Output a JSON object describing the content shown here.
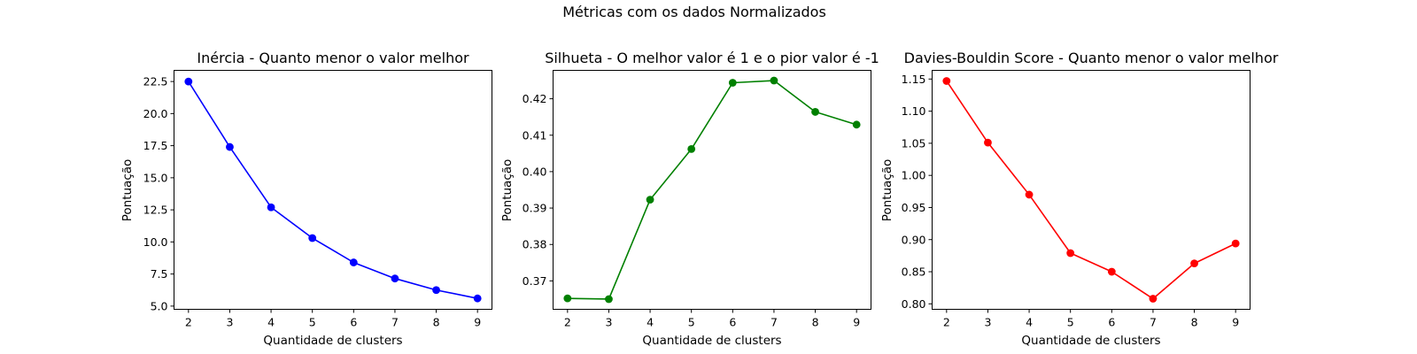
{
  "figure": {
    "suptitle": "Métricas com os dados Normalizados"
  },
  "chart_data": [
    {
      "type": "line",
      "title": "Inércia - Quanto menor o valor melhor",
      "xlabel": "Quantidade de clusters",
      "ylabel": "Pontuação",
      "x": [
        2,
        3,
        4,
        5,
        6,
        7,
        8,
        9
      ],
      "series": [
        {
          "values": [
            22.5,
            17.4,
            12.7,
            10.3,
            8.4,
            7.15,
            6.25,
            5.6
          ],
          "color": "#0000ff",
          "marker": "circle"
        }
      ],
      "xticks": [
        2,
        3,
        4,
        5,
        6,
        7,
        8,
        9
      ],
      "xtick_labels": [
        "2",
        "3",
        "4",
        "5",
        "6",
        "7",
        "8",
        "9"
      ],
      "yticks": [
        5.0,
        7.5,
        10.0,
        12.5,
        15.0,
        17.5,
        20.0,
        22.5
      ],
      "ytick_labels": [
        "5.0",
        "7.5",
        "10.0",
        "12.5",
        "15.0",
        "17.5",
        "20.0",
        "22.5"
      ],
      "xlim": [
        1.65,
        9.35
      ],
      "ylim": [
        4.75,
        23.37
      ],
      "grid": false
    },
    {
      "type": "line",
      "title": "Silhueta - O melhor valor é 1 e o pior valor é -1",
      "xlabel": "Quantidade de clusters",
      "ylabel": "Pontuação",
      "x": [
        2,
        3,
        4,
        5,
        6,
        7,
        8,
        9
      ],
      "series": [
        {
          "values": [
            0.3652,
            0.365,
            0.3923,
            0.4062,
            0.4244,
            0.425,
            0.4164,
            0.4129
          ],
          "color": "#008000",
          "marker": "circle"
        }
      ],
      "xticks": [
        2,
        3,
        4,
        5,
        6,
        7,
        8,
        9
      ],
      "xtick_labels": [
        "2",
        "3",
        "4",
        "5",
        "6",
        "7",
        "8",
        "9"
      ],
      "yticks": [
        0.37,
        0.38,
        0.39,
        0.4,
        0.41,
        0.42
      ],
      "ytick_labels": [
        "0.37",
        "0.38",
        "0.39",
        "0.40",
        "0.41",
        "0.42"
      ],
      "xlim": [
        1.65,
        9.35
      ],
      "ylim": [
        0.3622,
        0.4278
      ],
      "grid": false
    },
    {
      "type": "line",
      "title": "Davies-Bouldin Score - Quanto menor o valor melhor",
      "xlabel": "Quantidade de clusters",
      "ylabel": "Pontuação",
      "x": [
        2,
        3,
        4,
        5,
        6,
        7,
        8,
        9
      ],
      "series": [
        {
          "values": [
            1.147,
            1.051,
            0.97,
            0.879,
            0.85,
            0.808,
            0.863,
            0.894
          ],
          "color": "#ff0000",
          "marker": "circle"
        }
      ],
      "xticks": [
        2,
        3,
        4,
        5,
        6,
        7,
        8,
        9
      ],
      "xtick_labels": [
        "2",
        "3",
        "4",
        "5",
        "6",
        "7",
        "8",
        "9"
      ],
      "yticks": [
        0.8,
        0.85,
        0.9,
        0.95,
        1.0,
        1.05,
        1.1,
        1.15
      ],
      "ytick_labels": [
        "0.80",
        "0.85",
        "0.90",
        "0.95",
        "1.00",
        "1.05",
        "1.10",
        "1.15"
      ],
      "xlim": [
        1.65,
        9.35
      ],
      "ylim": [
        0.7915,
        1.1635
      ],
      "grid": false
    }
  ]
}
